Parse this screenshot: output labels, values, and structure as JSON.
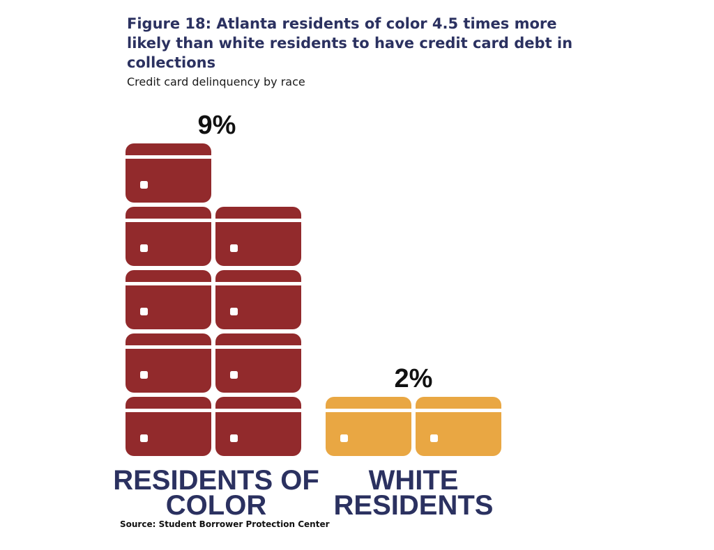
{
  "chart_data": {
    "type": "bar",
    "title": "Figure 18: Atlanta residents of color 4.5 times more likely than white residents to have credit card debt in collections",
    "subtitle": "Credit card delinquency by race",
    "categories": [
      "RESIDENTS OF COLOR",
      "WHITE RESIDENTS"
    ],
    "category_lines": [
      [
        "RESIDENTS OF",
        "COLOR"
      ],
      [
        "WHITE",
        "RESIDENTS"
      ]
    ],
    "values": [
      9,
      2
    ],
    "value_labels": [
      "9%",
      "2%"
    ],
    "unit": "%",
    "colors": [
      "#922a2c",
      "#e9a743"
    ],
    "icon": "credit-card-icon",
    "source": "Source: Student Borrower Protection Center"
  }
}
